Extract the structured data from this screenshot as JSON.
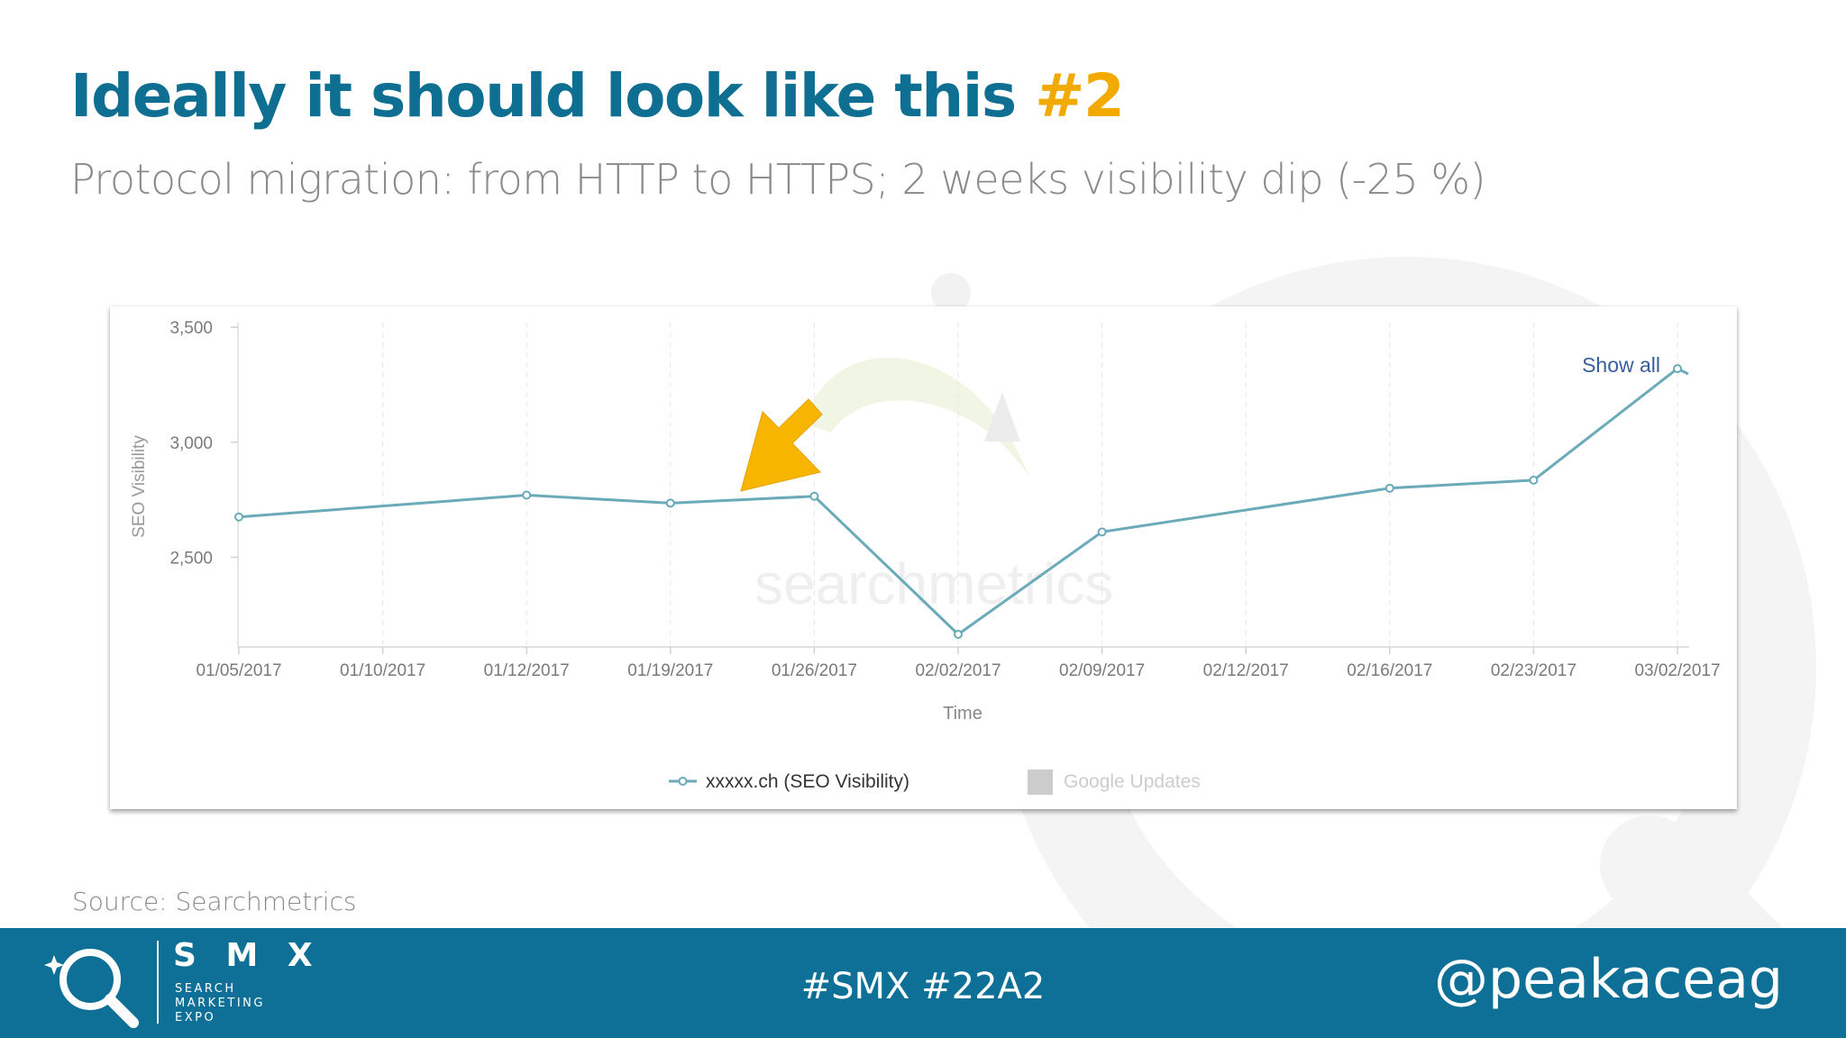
{
  "slide": {
    "title_main": "Ideally it should look like this ",
    "title_highlight": "#2",
    "subtitle": "Protocol migration: from HTTP to HTTPS; 2 weeks visibility dip (-25 %)",
    "source": "Source: Searchmetrics",
    "colors": {
      "title": "#0f6f92",
      "highlight": "#f2a900",
      "footer": "#0e7096",
      "series": "#6aaab9",
      "arrow": "#f7b500"
    }
  },
  "chart": {
    "show_all_label": "Show all",
    "watermark": "searchmetrics",
    "annotation": "arrow pointing at 01/26/2017"
  },
  "chart_data": {
    "type": "line",
    "xlabel": "Time",
    "ylabel": "SEO Visibility",
    "categories": [
      "01/05/2017",
      "01/10/2017",
      "01/12/2017",
      "01/19/2017",
      "01/26/2017",
      "02/02/2017",
      "02/09/2017",
      "02/12/2017",
      "02/16/2017",
      "02/23/2017",
      "03/02/2017"
    ],
    "yticks": [
      2500,
      3000,
      3500
    ],
    "ytick_labels": [
      "2,500",
      "3,000",
      "3,500"
    ],
    "ylim": [
      2110,
      3520
    ],
    "grid": "vertical dashed",
    "legend_position": "bottom",
    "series": [
      {
        "name": "xxxxx.ch (SEO Visibility)",
        "points": [
          {
            "x": "01/05/2017",
            "y": 2675
          },
          {
            "x": "01/12/2017",
            "y": 2770
          },
          {
            "x": "01/19/2017",
            "y": 2735
          },
          {
            "x": "01/26/2017",
            "y": 2765
          },
          {
            "x": "02/02/2017",
            "y": 2165
          },
          {
            "x": "02/09/2017",
            "y": 2610
          },
          {
            "x": "02/16/2017",
            "y": 2800
          },
          {
            "x": "02/23/2017",
            "y": 2835
          },
          {
            "x": "03/02/2017",
            "y": 3320
          }
        ]
      }
    ],
    "legend": [
      {
        "label": "xxxxx.ch (SEO Visibility)",
        "kind": "line"
      },
      {
        "label": "Google Updates",
        "kind": "box"
      }
    ]
  },
  "footer": {
    "brand_name": "S M X",
    "brand_line1": "SEARCH",
    "brand_line2": "MARKETING",
    "brand_line3": "EXPO",
    "hashtags": "#SMX #22A2",
    "handle": "@peakaceag"
  }
}
